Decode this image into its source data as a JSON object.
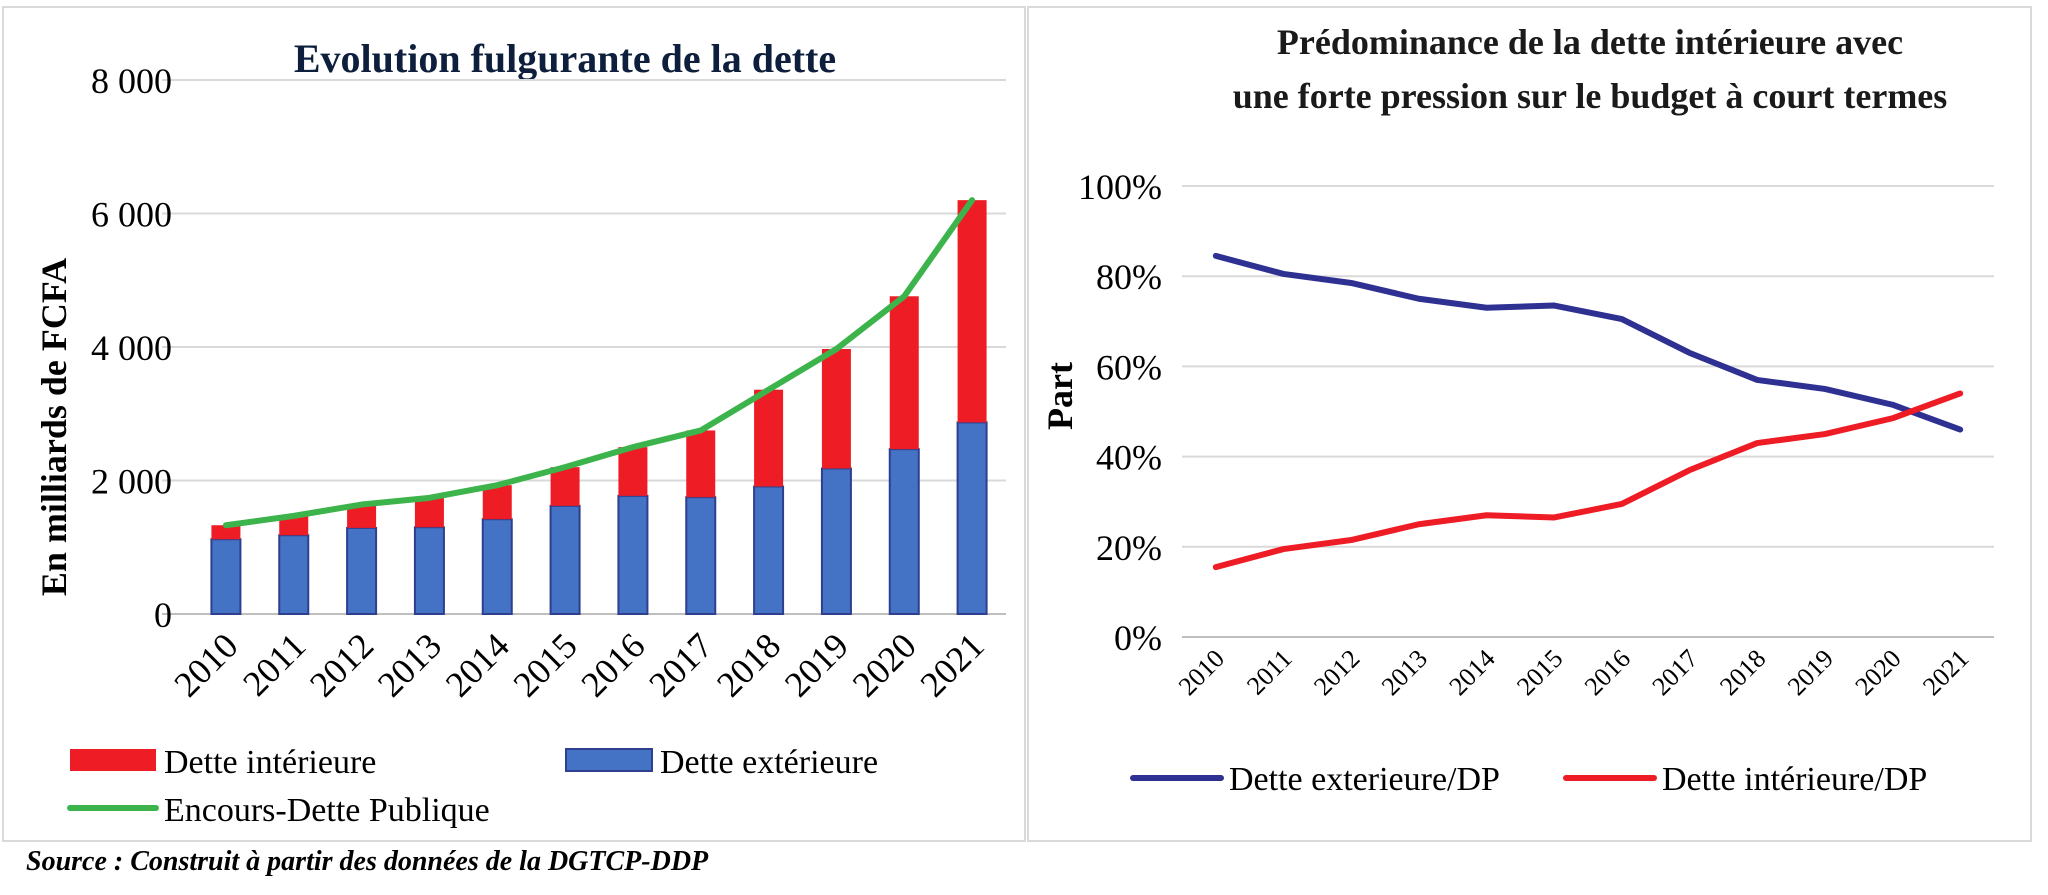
{
  "source_note": "Source : Construit à partir des données de la DGTCP-DDP",
  "chart_data": [
    {
      "type": "bar",
      "stacked": true,
      "title": "Evolution fulgurante de la dette",
      "ylabel": "En milliards de FCFA",
      "xlabel": "",
      "ylim": [
        0,
        8000
      ],
      "yticks": [
        "0",
        "2 000",
        "4 000",
        "6 000",
        "8 000"
      ],
      "categories": [
        "2010",
        "2011",
        "2012",
        "2013",
        "2014",
        "2015",
        "2016",
        "2017",
        "2018",
        "2019",
        "2020",
        "2021"
      ],
      "series": [
        {
          "name": "Dette extérieure",
          "kind": "bar",
          "color": "#4472c4",
          "values": [
            1120,
            1180,
            1290,
            1300,
            1420,
            1620,
            1770,
            1750,
            1910,
            2180,
            2470,
            2870
          ]
        },
        {
          "name": "Dette intérieure",
          "kind": "bar",
          "color": "#ee1c25",
          "values": [
            210,
            290,
            350,
            440,
            510,
            580,
            730,
            1000,
            1450,
            1790,
            2290,
            3330
          ]
        },
        {
          "name": "Encours-Dette Publique",
          "kind": "line",
          "color": "#3cb44b",
          "values": [
            1330,
            1470,
            1640,
            1740,
            1930,
            2200,
            2500,
            2750,
            3360,
            3970,
            4760,
            6200
          ]
        }
      ],
      "legend_order": [
        "Dette intérieure",
        "Dette extérieure",
        "Encours-Dette Publique"
      ],
      "grid": true,
      "legend_position": "bottom"
    },
    {
      "type": "line",
      "title": "Prédominance de la dette intérieure avec une forte pression sur le budget à court termes",
      "title_lines": [
        "Prédominance de la dette intérieure avec",
        "une forte pression sur le budget à court termes"
      ],
      "ylabel": "Part",
      "xlabel": "",
      "ylim": [
        0,
        100
      ],
      "yticks": [
        "0%",
        "20%",
        "40%",
        "60%",
        "80%",
        "100%"
      ],
      "categories": [
        "2010",
        "2011",
        "2012",
        "2013",
        "2014",
        "2015",
        "2016",
        "2017",
        "2018",
        "2019",
        "2020",
        "2021"
      ],
      "series": [
        {
          "name": "Dette exterieure/DP",
          "color": "#2e3192",
          "values": [
            84.5,
            80.5,
            78.5,
            75,
            73,
            73.5,
            70.5,
            63,
            57,
            55,
            51.5,
            46
          ]
        },
        {
          "name": "Dette intérieure/DP",
          "color": "#ee1c25",
          "values": [
            15.5,
            19.5,
            21.5,
            25,
            27,
            26.5,
            29.5,
            37,
            43,
            45,
            48.5,
            54
          ]
        }
      ],
      "grid": true,
      "legend_position": "bottom"
    }
  ]
}
